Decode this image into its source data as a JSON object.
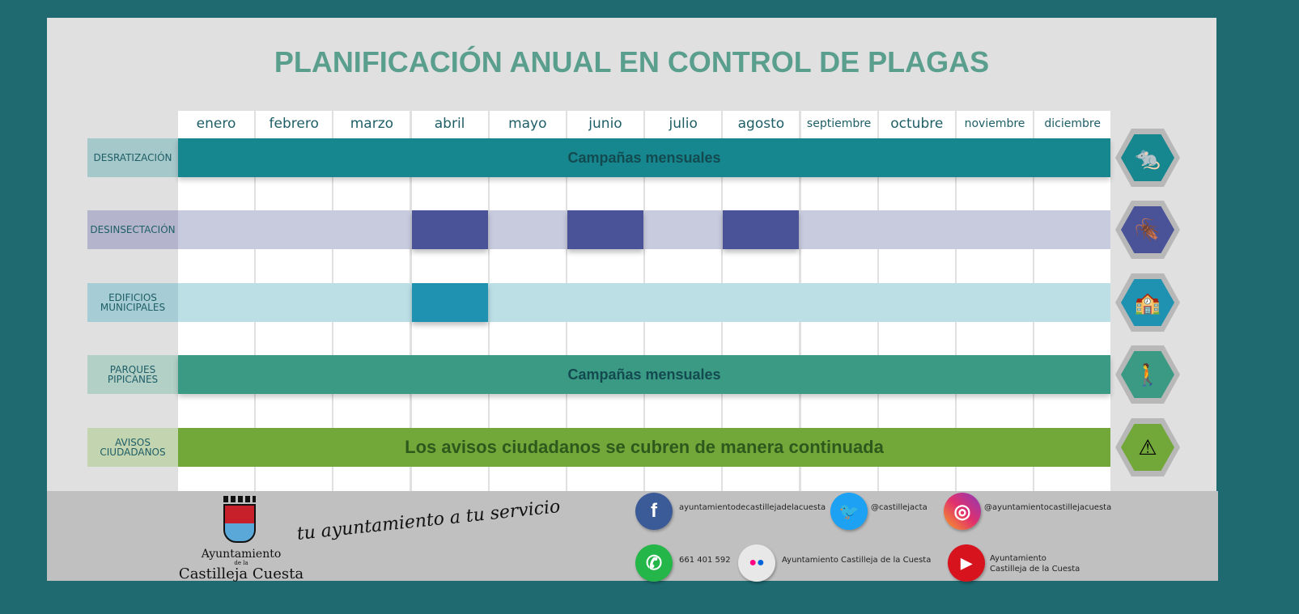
{
  "title": "PLANIFICACIÓN ANUAL EN CONTROL DE PLAGAS",
  "months": [
    "enero",
    "febrero",
    "marzo",
    "abril",
    "mayo",
    "junio",
    "julio",
    "agosto",
    "septiembre",
    "octubre",
    "noviembre",
    "diciembre"
  ],
  "rows": [
    {
      "label": "DESRATIZACIÓN",
      "bar_text": "Campañas mensuales",
      "icon": "rat-icon",
      "color": "#16868f"
    },
    {
      "label": "DESINSECTACIÓN",
      "bar_text": "",
      "icon": "cockroach-icon",
      "color": "#c8cade",
      "active_color": "#4a5398",
      "active_months": [
        "abril",
        "junio",
        "agosto"
      ]
    },
    {
      "label": "EDIFICIOS MUNICIPALES",
      "bar_text": "",
      "icon": "building-icon",
      "color": "#bcdfe6",
      "active_color": "#1e92b0",
      "active_months": [
        "abril"
      ]
    },
    {
      "label": "PARQUES PIPICANES",
      "bar_text": "Campañas mensuales",
      "icon": "dog-walker-icon",
      "color": "#3a9a83"
    },
    {
      "label": "AVISOS CIUDADANOS",
      "bar_text": "Los avisos ciudadanos se cubren de manera continuada",
      "icon": "warning-megaphone-icon",
      "color": "#72a73a"
    }
  ],
  "footer": {
    "logo_text_1": "Ayuntamiento",
    "logo_text_2": "de la",
    "logo_text_3": "Castilleja Cuesta",
    "slogan": "tu ayuntamiento a tu servicio",
    "facebook": "ayuntamientodecastillejadelacuesta",
    "twitter": "@castillejacta",
    "instagram": "@ayuntamientocastillejacuesta",
    "whatsapp": "661 401 592",
    "flickr": "Ayuntamiento Castilleja de la Cuesta",
    "youtube_1": "Ayuntamiento",
    "youtube_2": "Castilleja de la Cuesta"
  }
}
